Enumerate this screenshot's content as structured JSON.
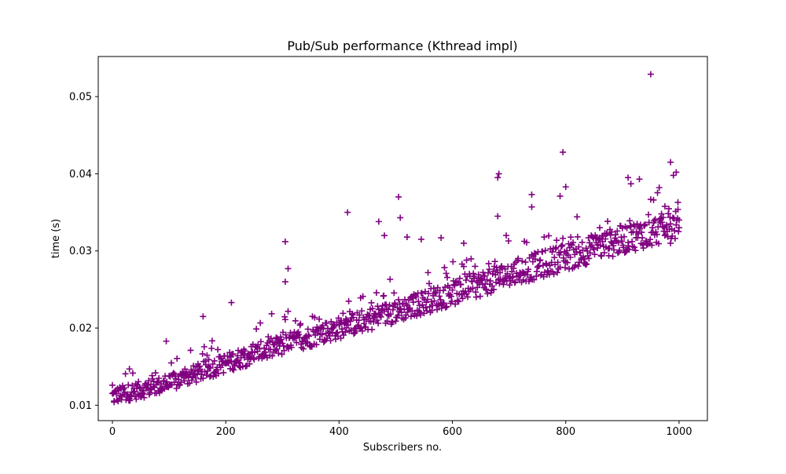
{
  "chart_data": {
    "type": "scatter",
    "title": "Pub/Sub performance (Kthread impl)",
    "xlabel": "Subscribers no.",
    "ylabel": "time (s)",
    "xlim": [
      -25,
      1050
    ],
    "ylim": [
      0.008,
      0.0552
    ],
    "x_ticks": [
      0,
      200,
      400,
      600,
      800,
      1000
    ],
    "x_tick_labels": [
      "0",
      "200",
      "400",
      "600",
      "800",
      "1000"
    ],
    "y_ticks": [
      0.01,
      0.02,
      0.03,
      0.04,
      0.05
    ],
    "y_tick_labels": [
      "0.01",
      "0.02",
      "0.03",
      "0.04",
      "0.05"
    ],
    "marker": "+",
    "marker_color": "#800080",
    "grid": false,
    "series": [
      {
        "x_start": 0,
        "x_end": 999,
        "x_step": 1,
        "n": 1000,
        "trend": [
          [
            0,
            0.0112
          ],
          [
            100,
            0.0128
          ],
          [
            200,
            0.0155
          ],
          [
            300,
            0.0178
          ],
          [
            400,
            0.02
          ],
          [
            500,
            0.0222
          ],
          [
            600,
            0.0245
          ],
          [
            700,
            0.027
          ],
          [
            800,
            0.0292
          ],
          [
            900,
            0.0315
          ],
          [
            1000,
            0.0335
          ]
        ],
        "spread": 0.0018,
        "upper_band": 0.0035,
        "points": [
          [
            0,
            0.0126
          ],
          [
            3,
            0.0104
          ],
          [
            30,
            0.0147
          ],
          [
            95,
            0.0183
          ],
          [
            160,
            0.0215
          ],
          [
            210,
            0.0233
          ],
          [
            305,
            0.0312
          ],
          [
            310,
            0.0277
          ],
          [
            305,
            0.026
          ],
          [
            415,
            0.035
          ],
          [
            470,
            0.0338
          ],
          [
            480,
            0.032
          ],
          [
            505,
            0.037
          ],
          [
            508,
            0.0343
          ],
          [
            520,
            0.0318
          ],
          [
            545,
            0.0315
          ],
          [
            580,
            0.0317
          ],
          [
            620,
            0.031
          ],
          [
            625,
            0.0288
          ],
          [
            680,
            0.0395
          ],
          [
            682,
            0.04
          ],
          [
            680,
            0.0345
          ],
          [
            695,
            0.032
          ],
          [
            740,
            0.0373
          ],
          [
            740,
            0.0357
          ],
          [
            790,
            0.0371
          ],
          [
            795,
            0.0428
          ],
          [
            800,
            0.0383
          ],
          [
            860,
            0.033
          ],
          [
            910,
            0.0395
          ],
          [
            915,
            0.0387
          ],
          [
            930,
            0.0393
          ],
          [
            950,
            0.0529
          ],
          [
            955,
            0.0366
          ],
          [
            965,
            0.0382
          ],
          [
            985,
            0.0415
          ],
          [
            990,
            0.0398
          ],
          [
            995,
            0.0402
          ],
          [
            998,
            0.0363
          ],
          [
            1000,
            0.034
          ],
          [
            1000,
            0.033
          ],
          [
            975,
            0.032
          ],
          [
            985,
            0.031
          ]
        ]
      }
    ]
  }
}
